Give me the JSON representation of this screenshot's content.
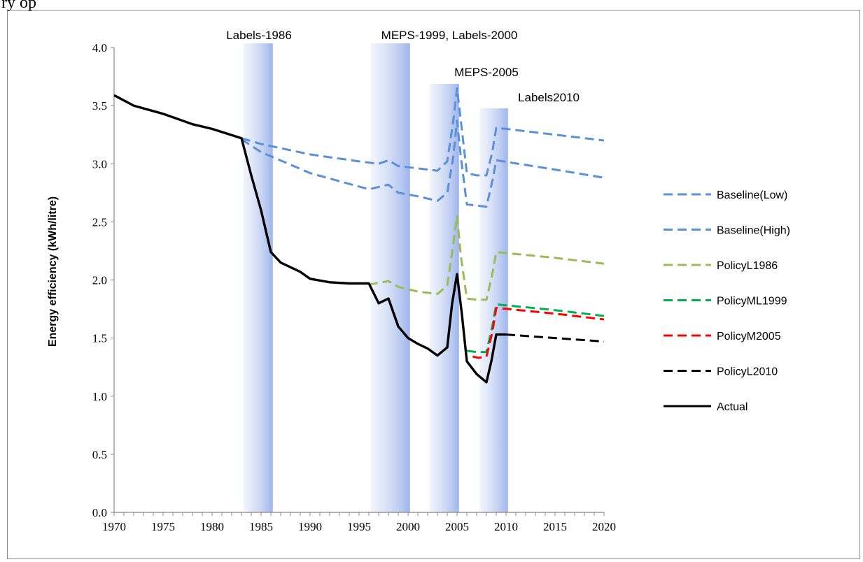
{
  "page": {
    "top_text": "ry op"
  },
  "chart_data": {
    "type": "line",
    "title": "",
    "xlabel": "",
    "ylabel": "Energy efficiency (kWh/litre)",
    "xlim": [
      1970,
      2020
    ],
    "ylim": [
      0,
      4.0
    ],
    "x_ticks": [
      "1970",
      "1975",
      "1980",
      "1985",
      "1990",
      "1995",
      "2000",
      "2005",
      "2010",
      "2015",
      "2020"
    ],
    "y_ticks": [
      "0.0",
      "0.5",
      "1.0",
      "1.5",
      "2.0",
      "2.5",
      "3.0",
      "3.5",
      "4.0"
    ],
    "grid": false,
    "legend_position": "right",
    "bands": [
      {
        "label": "Labels-1986",
        "x0": 1983.2,
        "x1": 1986.2
      },
      {
        "label": "MEPS-1999, Labels-2000",
        "x0": 1996.2,
        "x1": 2000.2
      },
      {
        "label": "MEPS-2005",
        "x0": 2002.2,
        "x1": 2005.2
      },
      {
        "label": "Labels2010",
        "x0": 2007.3,
        "x1": 2010.2
      }
    ],
    "series": [
      {
        "name": "Baseline(Low)",
        "color": "#5b8fd9",
        "dash": true,
        "x": [
          1983,
          1985,
          1990,
          1995,
          1997,
          1998,
          1999,
          2001,
          2003,
          2004,
          2004.6,
          2005,
          2005.4,
          2006,
          2007,
          2008,
          2008.6,
          2009,
          2015,
          2020
        ],
        "y": [
          3.22,
          3.17,
          3.08,
          3.02,
          3.0,
          3.03,
          2.98,
          2.96,
          2.94,
          3.02,
          3.36,
          3.65,
          3.36,
          2.92,
          2.9,
          2.9,
          3.1,
          3.31,
          3.25,
          3.2
        ]
      },
      {
        "name": "Baseline(High)",
        "color": "#5b8fd9",
        "dash": true,
        "x": [
          1983,
          1985,
          1990,
          1996,
          1998,
          1999,
          2001,
          2003,
          2004,
          2004.6,
          2005,
          2005.4,
          2006,
          2007,
          2008,
          2008.6,
          2009,
          2015,
          2020
        ],
        "y": [
          3.21,
          3.1,
          2.92,
          2.78,
          2.82,
          2.75,
          2.72,
          2.68,
          2.75,
          3.05,
          3.37,
          3.05,
          2.65,
          2.64,
          2.63,
          2.85,
          3.03,
          2.95,
          2.88
        ]
      },
      {
        "name": "PolicyL1986",
        "color": "#9bbb59",
        "dash": true,
        "x": [
          1996,
          1998,
          1999,
          2001,
          2003,
          2004,
          2004.6,
          2005,
          2005.4,
          2006,
          2007,
          2008,
          2008.6,
          2009,
          2015,
          2020
        ],
        "y": [
          1.96,
          1.99,
          1.94,
          1.9,
          1.88,
          1.95,
          2.3,
          2.55,
          2.2,
          1.84,
          1.83,
          1.83,
          2.05,
          2.24,
          2.19,
          2.14
        ]
      },
      {
        "name": "PolicyML1999",
        "color": "#00b050",
        "dash": true,
        "x": [
          2006,
          2007,
          2008,
          2008.6,
          2009,
          2015,
          2020
        ],
        "y": [
          1.39,
          1.38,
          1.38,
          1.6,
          1.79,
          1.74,
          1.69
        ]
      },
      {
        "name": "PolicyM2005",
        "color": "#ff0000",
        "dash": true,
        "x": [
          2006.6,
          2007.2,
          2008,
          2008.6,
          2009,
          2015,
          2020
        ],
        "y": [
          1.34,
          1.33,
          1.34,
          1.55,
          1.76,
          1.71,
          1.66
        ]
      },
      {
        "name": "PolicyL2010",
        "color": "#000000",
        "dash": true,
        "x": [
          2010,
          2015,
          2020
        ],
        "y": [
          1.53,
          1.5,
          1.47
        ]
      },
      {
        "name": "Actual",
        "color": "#000000",
        "dash": false,
        "x": [
          1970,
          1972,
          1975,
          1978,
          1980,
          1983,
          1984,
          1985,
          1986,
          1987,
          1989,
          1990,
          1992,
          1994,
          1996,
          1997,
          1998,
          1999,
          2000,
          2001,
          2002,
          2003,
          2004,
          2004.5,
          2005,
          2005.5,
          2006,
          2007,
          2008,
          2008.5,
          2009,
          2010
        ],
        "y": [
          3.59,
          3.5,
          3.43,
          3.34,
          3.3,
          3.22,
          2.9,
          2.6,
          2.24,
          2.15,
          2.07,
          2.01,
          1.98,
          1.97,
          1.97,
          1.8,
          1.84,
          1.6,
          1.5,
          1.45,
          1.41,
          1.35,
          1.42,
          1.8,
          2.05,
          1.7,
          1.3,
          1.19,
          1.12,
          1.3,
          1.53,
          1.53
        ]
      }
    ]
  }
}
